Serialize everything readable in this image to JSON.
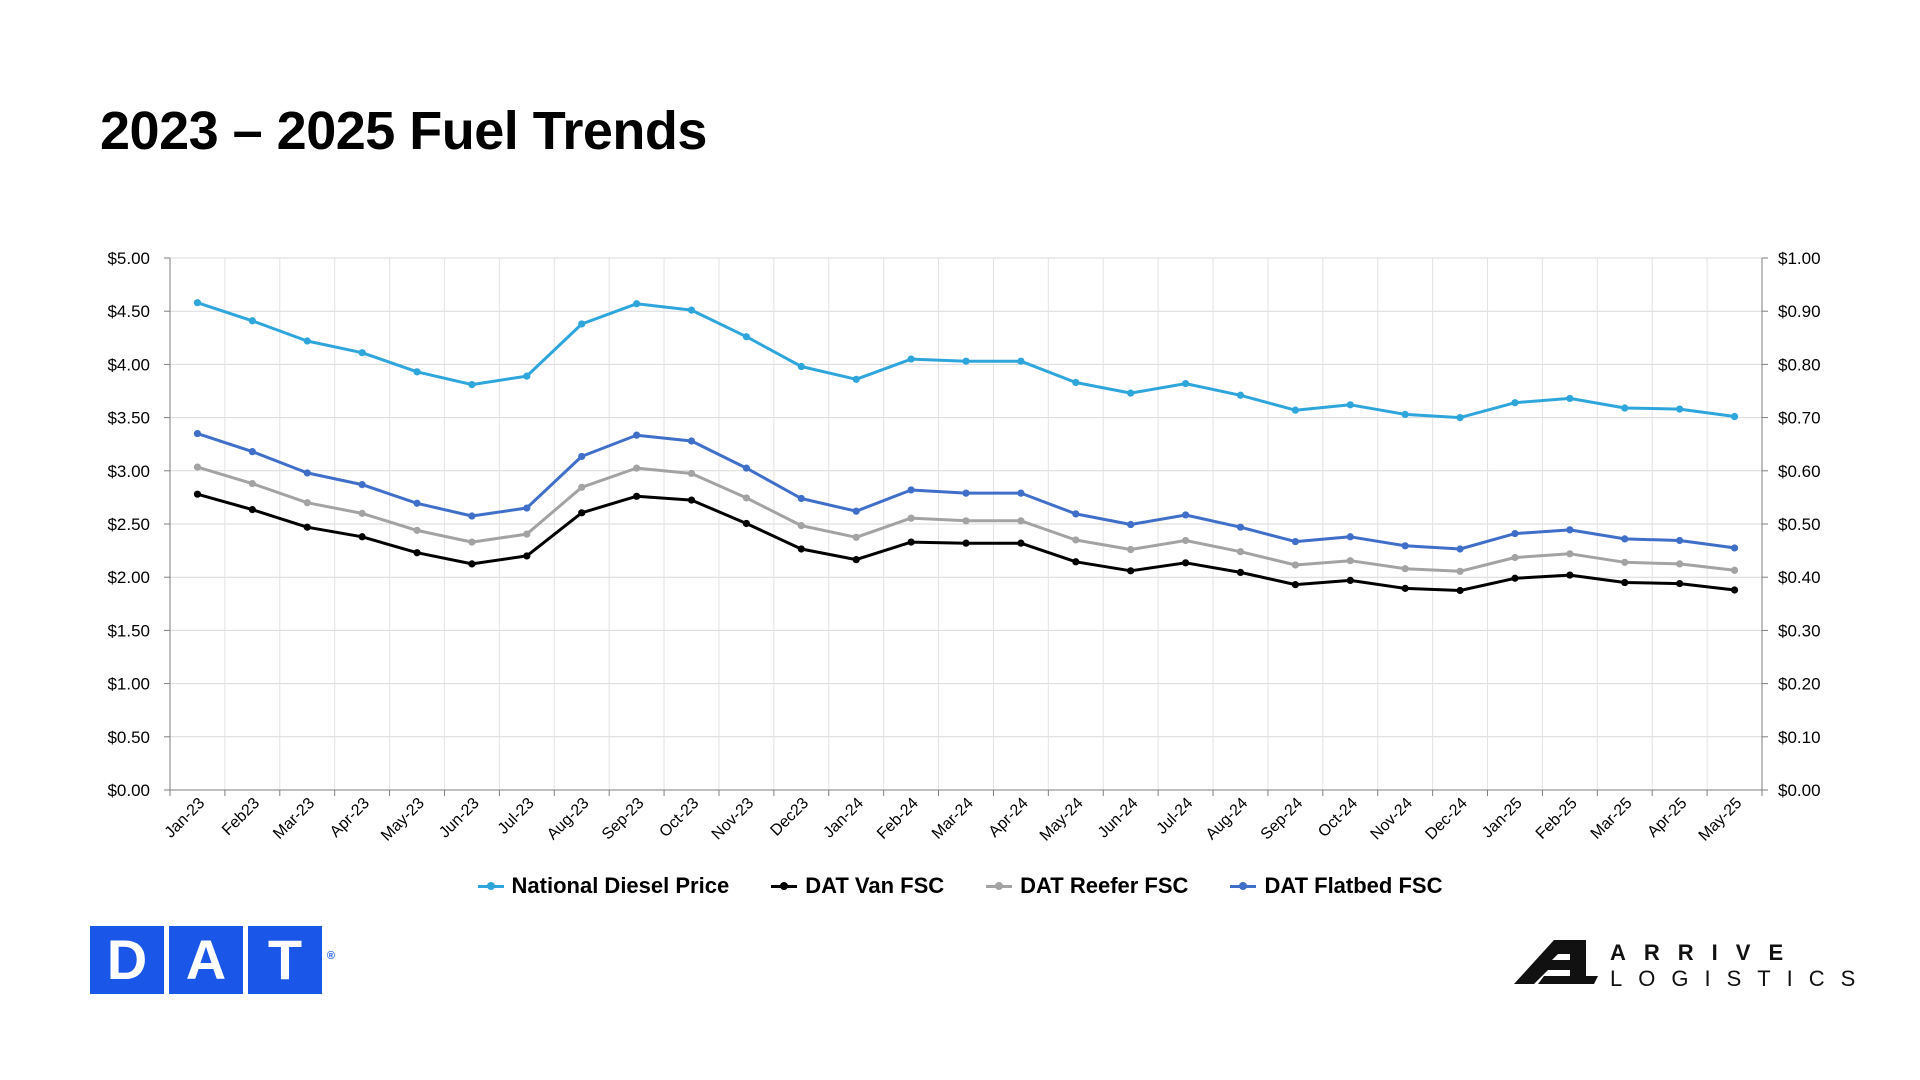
{
  "title": "2023 – 2025 Fuel Trends",
  "chart_data": {
    "type": "line",
    "categories": [
      "Jan-23",
      "Feb23",
      "Mar-23",
      "Apr-23",
      "May-23",
      "Jun-23",
      "Jul-23",
      "Aug-23",
      "Sep-23",
      "Oct-23",
      "Nov-23",
      "Dec23",
      "Jan-24",
      "Feb-24",
      "Mar-24",
      "Apr-24",
      "May-24",
      "Jun-24",
      "Jul-24",
      "Aug-24",
      "Sep-24",
      "Oct-24",
      "Nov-24",
      "Dec-24",
      "Jan-25",
      "Feb-25",
      "Mar-25",
      "Apr-25",
      "May-25"
    ],
    "left_axis": {
      "ylim": [
        0,
        5
      ],
      "ticks": [
        "$0.00",
        "$0.50",
        "$1.00",
        "$1.50",
        "$2.00",
        "$2.50",
        "$3.00",
        "$3.50",
        "$4.00",
        "$4.50",
        "$5.00"
      ]
    },
    "right_axis": {
      "ylim": [
        0,
        1
      ],
      "ticks": [
        "$0.00",
        "$0.10",
        "$0.20",
        "$0.30",
        "$0.40",
        "$0.50",
        "$0.60",
        "$0.70",
        "$0.80",
        "$0.90",
        "$1.00"
      ]
    },
    "grid": true,
    "legend_position": "bottom",
    "series": [
      {
        "name": "National Diesel Price",
        "axis": "left",
        "color": "#2ea6dc",
        "values": [
          4.58,
          4.41,
          4.22,
          4.11,
          3.93,
          3.81,
          3.89,
          4.38,
          4.57,
          4.51,
          4.26,
          3.98,
          3.86,
          4.05,
          4.03,
          4.03,
          3.83,
          3.73,
          3.82,
          3.71,
          3.57,
          3.62,
          3.53,
          3.5,
          3.64,
          3.68,
          3.59,
          3.58,
          3.51
        ]
      },
      {
        "name": "DAT Van FSC",
        "axis": "right",
        "color": "#000000",
        "values": [
          0.556,
          0.527,
          0.494,
          0.476,
          0.446,
          0.425,
          0.44,
          0.521,
          0.552,
          0.545,
          0.501,
          0.453,
          0.433,
          0.466,
          0.464,
          0.464,
          0.429,
          0.412,
          0.427,
          0.409,
          0.386,
          0.394,
          0.379,
          0.375,
          0.398,
          0.404,
          0.39,
          0.388,
          0.376
        ]
      },
      {
        "name": "DAT Reefer FSC",
        "axis": "right",
        "color": "#a3a3a3",
        "values": [
          0.607,
          0.576,
          0.54,
          0.52,
          0.488,
          0.466,
          0.481,
          0.569,
          0.605,
          0.595,
          0.549,
          0.497,
          0.475,
          0.511,
          0.506,
          0.506,
          0.47,
          0.452,
          0.469,
          0.448,
          0.423,
          0.431,
          0.416,
          0.411,
          0.437,
          0.444,
          0.428,
          0.425,
          0.413
        ]
      },
      {
        "name": "DAT Flatbed FSC",
        "axis": "right",
        "color": "#3f6fc8",
        "values": [
          0.67,
          0.636,
          0.596,
          0.574,
          0.539,
          0.515,
          0.53,
          0.627,
          0.667,
          0.656,
          0.605,
          0.548,
          0.524,
          0.564,
          0.558,
          0.558,
          0.519,
          0.499,
          0.517,
          0.494,
          0.467,
          0.476,
          0.459,
          0.453,
          0.482,
          0.489,
          0.472,
          0.469,
          0.455
        ]
      }
    ]
  },
  "logos": {
    "dat": {
      "letters": [
        "D",
        "A",
        "T"
      ],
      "mark": "®",
      "color": "#1a56e8"
    },
    "arrive": {
      "line1": "ARRIVE",
      "line2": "LOGISTICS"
    }
  }
}
